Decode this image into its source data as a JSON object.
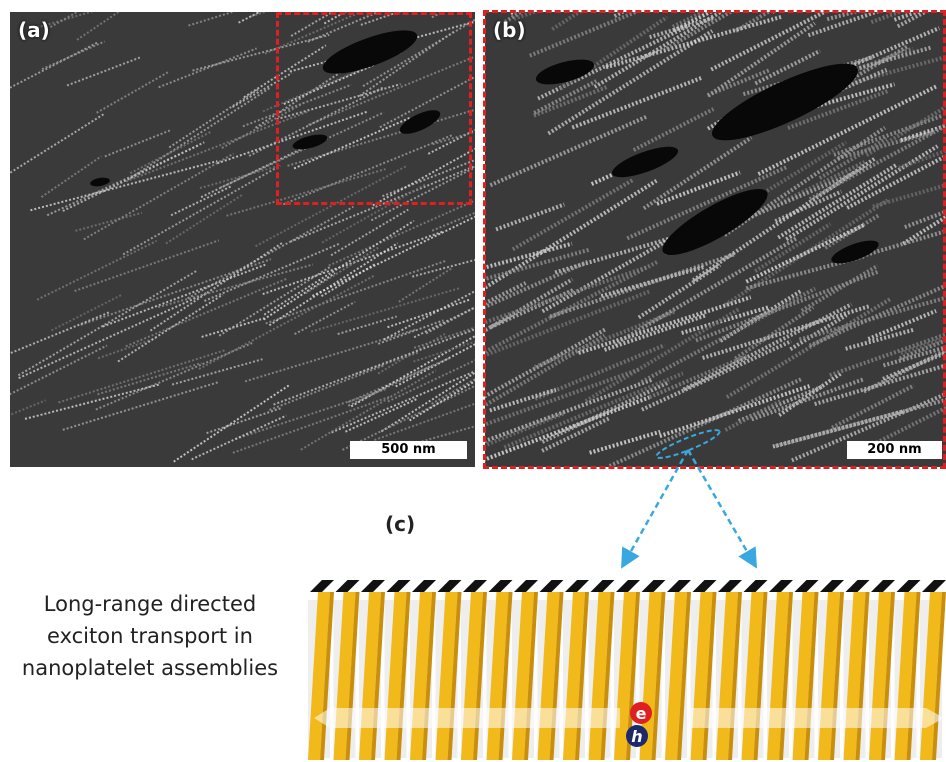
{
  "figure": {
    "panel_a": {
      "label": "(a)",
      "scale_bar": "500 nm"
    },
    "panel_b": {
      "label": "(b)",
      "scale_bar": "200 nm"
    },
    "panel_c": {
      "label": "(c)"
    },
    "caption_lines": [
      "Long-range directed",
      "exciton transport in",
      "nanoplatelet assemblies"
    ],
    "carriers": {
      "electron": "e",
      "hole": "h"
    },
    "colors": {
      "inset_outline": "#e02020",
      "arrow": "#3aa8e0",
      "platelet_face": "#f2b91a",
      "platelet_edge": "#111111",
      "electron": "#e02020",
      "hole": "#1c2a6b"
    },
    "platelet_count": 25
  }
}
